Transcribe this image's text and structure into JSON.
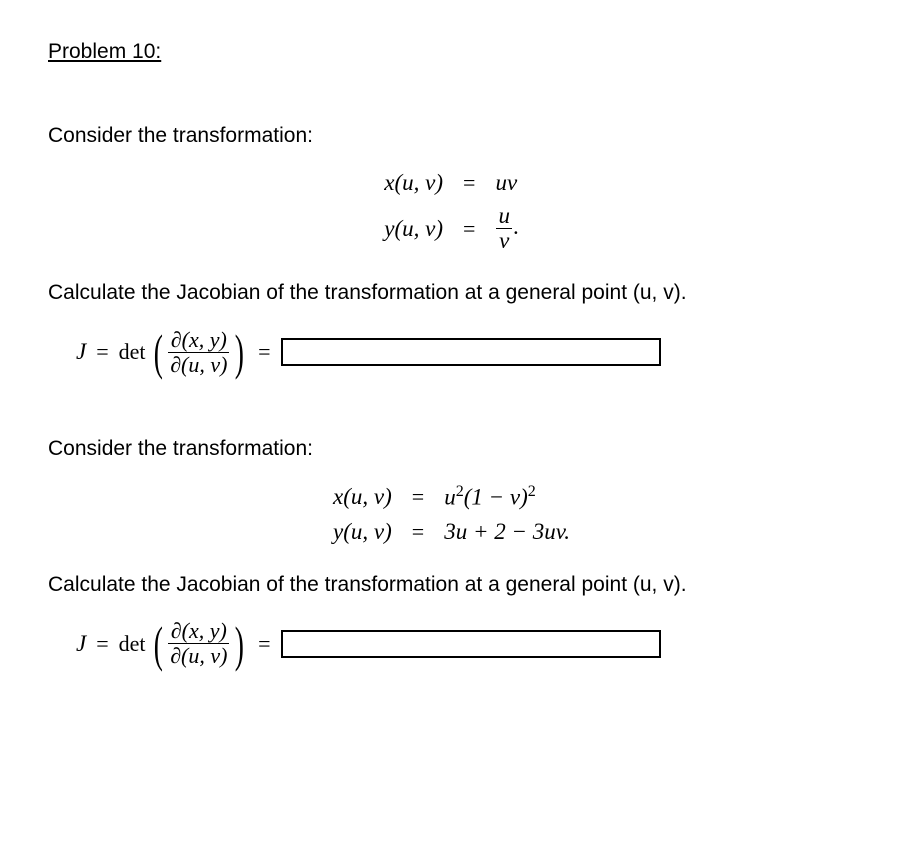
{
  "heading": "Problem 10:",
  "part1": {
    "intro": "Consider the transformation:",
    "eq1_lhs": "x(u, v)",
    "eq1_rhs": "uv",
    "eq2_lhs": "y(u, v)",
    "eq2_num": "u",
    "eq2_den": "v",
    "eq2_tail": ".",
    "task": "Calculate the Jacobian of the transformation at a general point (u, v).",
    "J_label": "J",
    "det_label": "det",
    "jac_num": "∂(x, y)",
    "jac_den": "∂(u, v)"
  },
  "part2": {
    "intro": "Consider the transformation:",
    "eq1_lhs": "x(u, v)",
    "eq1_rhs_html": "u<sup>2</sup>(1 − v)<sup>2</sup>",
    "eq2_lhs": "y(u, v)",
    "eq2_rhs": "3u + 2 − 3uv.",
    "task": "Calculate the Jacobian of the transformation at a general point (u, v).",
    "J_label": "J",
    "det_label": "det",
    "jac_num": "∂(x, y)",
    "jac_den": "∂(u, v)"
  },
  "equals": "="
}
